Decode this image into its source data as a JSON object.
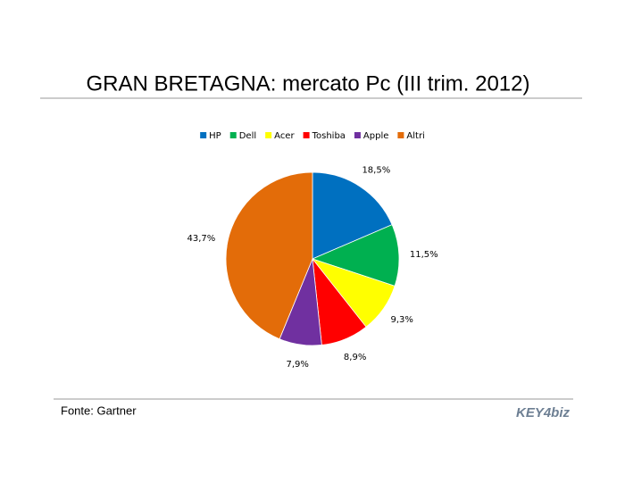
{
  "chart_data": {
    "type": "pie",
    "title": "GRAN BRETAGNA: mercato Pc (III trim. 2012)",
    "categories": [
      "HP",
      "Dell",
      "Acer",
      "Toshiba",
      "Apple",
      "Altri"
    ],
    "values": [
      18.5,
      11.5,
      9.3,
      8.9,
      7.9,
      43.7
    ],
    "value_labels": [
      "18,5%",
      "11,5%",
      "9,3%",
      "8,9%",
      "7,9%",
      "43,7%"
    ],
    "colors": [
      "#0070c0",
      "#00b050",
      "#ffff00",
      "#ff0000",
      "#7030a0",
      "#e36c09"
    ],
    "legend": "top",
    "source": "Fonte: Gartner",
    "logo": "KEY4biz"
  }
}
